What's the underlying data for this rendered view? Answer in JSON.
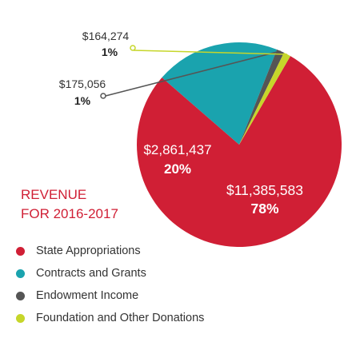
{
  "chart_data": {
    "type": "pie",
    "title_line1": "REVENUE",
    "title_line2": "FOR 2016-2017",
    "slices": [
      {
        "name": "State Appropriations",
        "value": 11385583,
        "value_label": "$11,385,583",
        "pct_label": "78%",
        "color": "#d01f35"
      },
      {
        "name": "Contracts and Grants",
        "value": 2861437,
        "value_label": "$2,861,437",
        "pct_label": "20%",
        "color": "#1aa3ae"
      },
      {
        "name": "Endowment Income",
        "value": 175056,
        "value_label": "$175,056",
        "pct_label": "1%",
        "color": "#555555"
      },
      {
        "name": "Foundation and Other Donations",
        "value": 164274,
        "value_label": "$164,274",
        "pct_label": "1%",
        "color": "#c6d62a"
      }
    ],
    "legend_position": "bottom-left"
  }
}
